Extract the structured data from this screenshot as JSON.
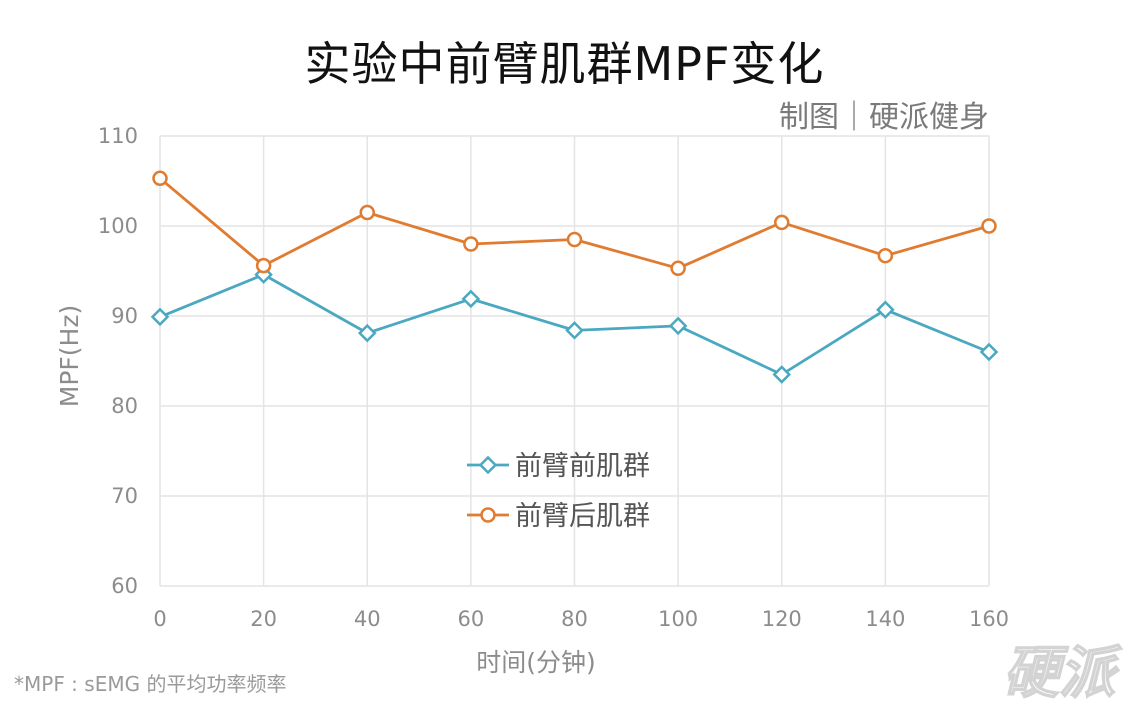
{
  "header": {
    "title": "实验中前臂肌群MPF变化",
    "credit": "制图｜硬派健身"
  },
  "footnote": "*MPF : sEMG 的平均功率频率",
  "watermark": "硬派",
  "chart_data": {
    "type": "line",
    "title": "实验中前臂肌群MPF变化",
    "xlabel": "时间(分钟)",
    "ylabel": "MPF(Hz)",
    "x": [
      0,
      20,
      40,
      60,
      80,
      100,
      120,
      140,
      160
    ],
    "xticks": [
      "0",
      "20",
      "40",
      "60",
      "80",
      "100",
      "120",
      "140",
      "160"
    ],
    "yticks": [
      "60",
      "70",
      "80",
      "90",
      "100",
      "110"
    ],
    "ylim": [
      60,
      110
    ],
    "grid": true,
    "legend_position": "center",
    "series": [
      {
        "name": "前臂前肌群",
        "color": "#4aa8c0",
        "marker": "diamond",
        "values": [
          89.9,
          94.6,
          88.1,
          91.9,
          88.4,
          88.9,
          83.5,
          90.7,
          86.0
        ]
      },
      {
        "name": "前臂后肌群",
        "color": "#e07b30",
        "marker": "circle",
        "values": [
          105.3,
          95.6,
          101.5,
          98.0,
          98.5,
          95.3,
          100.4,
          96.7,
          100.0
        ]
      }
    ]
  }
}
